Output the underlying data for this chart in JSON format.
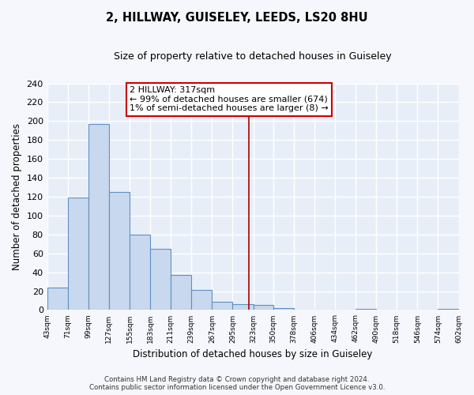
{
  "title": "2, HILLWAY, GUISELEY, LEEDS, LS20 8HU",
  "subtitle": "Size of property relative to detached houses in Guiseley",
  "xlabel": "Distribution of detached houses by size in Guiseley",
  "ylabel": "Number of detached properties",
  "bar_edges": [
    43,
    71,
    99,
    127,
    155,
    183,
    211,
    239,
    267,
    295,
    323,
    350,
    378,
    406,
    434,
    462,
    490,
    518,
    546,
    574,
    602
  ],
  "bar_heights": [
    24,
    119,
    197,
    125,
    80,
    65,
    37,
    21,
    9,
    6,
    5,
    2,
    0,
    0,
    0,
    1,
    0,
    0,
    0,
    1
  ],
  "bar_color": "#c8d8ee",
  "bar_edge_color": "#6090c0",
  "vline_x": 317,
  "vline_color": "#aa0000",
  "annotation_title": "2 HILLWAY: 317sqm",
  "annotation_line1": "← 99% of detached houses are smaller (674)",
  "annotation_line2": "1% of semi-detached houses are larger (8) →",
  "annotation_box_color": "#ffffff",
  "annotation_box_edge": "#cc0000",
  "ylim": [
    0,
    240
  ],
  "yticks": [
    0,
    20,
    40,
    60,
    80,
    100,
    120,
    140,
    160,
    180,
    200,
    220,
    240
  ],
  "tick_labels": [
    "43sqm",
    "71sqm",
    "99sqm",
    "127sqm",
    "155sqm",
    "183sqm",
    "211sqm",
    "239sqm",
    "267sqm",
    "295sqm",
    "323sqm",
    "350sqm",
    "378sqm",
    "406sqm",
    "434sqm",
    "462sqm",
    "490sqm",
    "518sqm",
    "546sqm",
    "574sqm",
    "602sqm"
  ],
  "footer_line1": "Contains HM Land Registry data © Crown copyright and database right 2024.",
  "footer_line2": "Contains public sector information licensed under the Open Government Licence v3.0.",
  "plot_bg_color": "#e8eef8",
  "fig_bg_color": "#f5f7fc",
  "grid_color": "#ffffff",
  "grid_linewidth": 1.0
}
